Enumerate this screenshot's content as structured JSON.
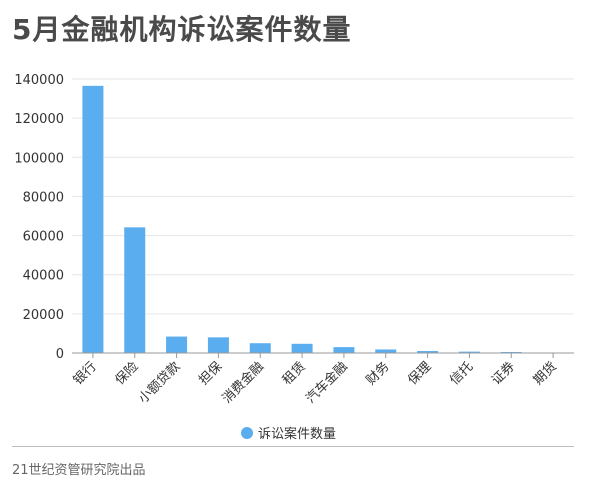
{
  "title": "5月金融机构诉讼案件数量",
  "footer": "21世纪资管研究院出品",
  "colors": {
    "bar": "#5aaef0",
    "grid": "#e6e6e6",
    "axis": "#999999",
    "text": "#333333"
  },
  "chart_data": {
    "type": "bar",
    "title": "5月金融机构诉讼案件数量",
    "xlabel": "",
    "ylabel": "",
    "categories": [
      "银行",
      "保险",
      "小额贷款",
      "担保",
      "消费金融",
      "租赁",
      "汽车金融",
      "财务",
      "保理",
      "信托",
      "证券",
      "期货"
    ],
    "series": [
      {
        "name": "诉讼案件数量",
        "values": [
          136500,
          64200,
          8400,
          8000,
          5000,
          4700,
          3000,
          1800,
          1000,
          700,
          500,
          150
        ]
      }
    ],
    "ylim": [
      0,
      140000
    ],
    "yticks": [
      0,
      20000,
      40000,
      60000,
      80000,
      100000,
      120000,
      140000
    ],
    "grid": true,
    "legend_position": "bottom"
  }
}
